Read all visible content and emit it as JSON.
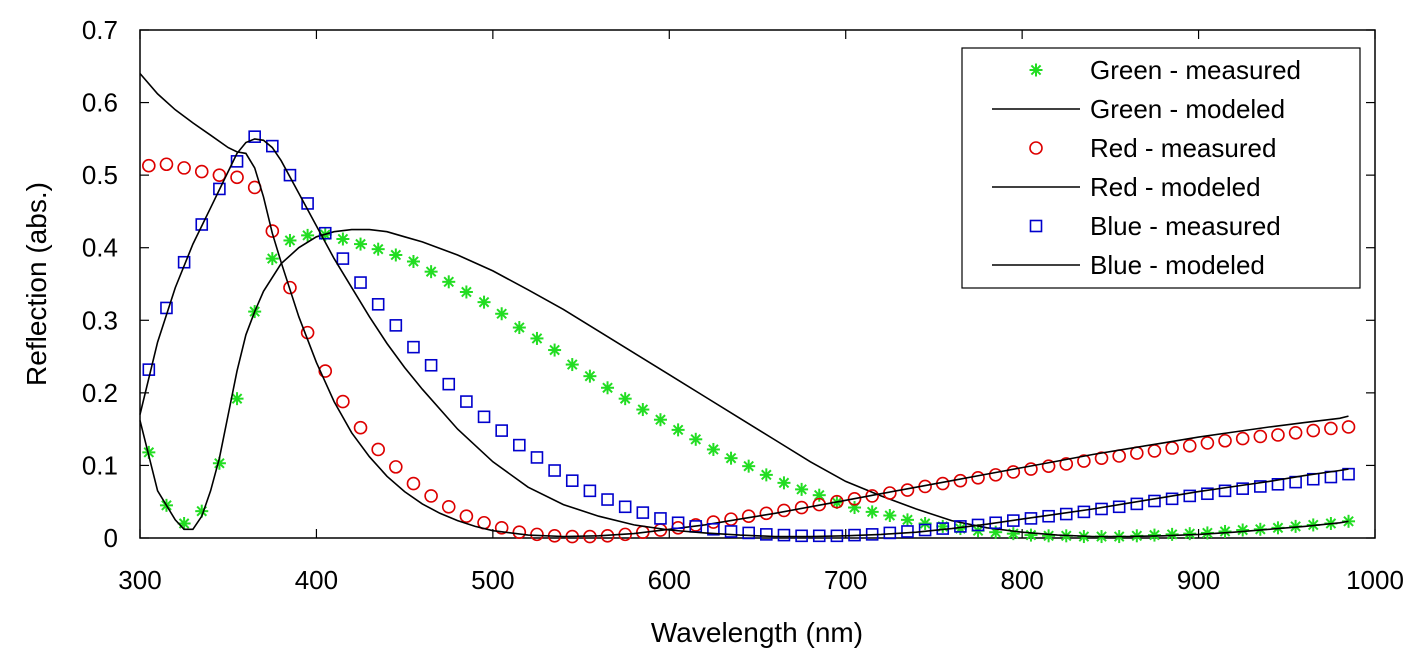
{
  "chart_data": {
    "type": "scatter",
    "xlabel": "Wavelength (nm)",
    "ylabel": "Reflection (abs.)",
    "xlim": [
      300,
      1000
    ],
    "ylim": [
      0,
      0.7
    ],
    "xticks": [
      "300",
      "400",
      "500",
      "600",
      "700",
      "800",
      "900",
      "1000"
    ],
    "yticks": [
      "0",
      "0.1",
      "0.2",
      "0.3",
      "0.4",
      "0.5",
      "0.6",
      "0.7"
    ],
    "grid": false,
    "legend_position": "top-right",
    "series": [
      {
        "name": "Green - measured",
        "kind": "markers",
        "marker": "asterisk",
        "color": "#22dd22",
        "x": [
          305,
          315,
          325,
          335,
          345,
          355,
          365,
          375,
          385,
          395,
          405,
          415,
          425,
          435,
          445,
          455,
          465,
          475,
          485,
          495,
          505,
          515,
          525,
          535,
          545,
          555,
          565,
          575,
          585,
          595,
          605,
          615,
          625,
          635,
          645,
          655,
          665,
          675,
          685,
          695,
          705,
          715,
          725,
          735,
          745,
          755,
          765,
          775,
          785,
          795,
          805,
          815,
          825,
          835,
          845,
          855,
          865,
          875,
          885,
          895,
          905,
          915,
          925,
          935,
          945,
          955,
          965,
          975,
          985
        ],
        "y": [
          0.118,
          0.045,
          0.02,
          0.037,
          0.103,
          0.192,
          0.312,
          0.385,
          0.41,
          0.417,
          0.418,
          0.412,
          0.405,
          0.398,
          0.39,
          0.381,
          0.367,
          0.353,
          0.339,
          0.325,
          0.309,
          0.29,
          0.275,
          0.259,
          0.239,
          0.223,
          0.207,
          0.192,
          0.177,
          0.163,
          0.149,
          0.136,
          0.122,
          0.11,
          0.099,
          0.087,
          0.076,
          0.067,
          0.059,
          0.049,
          0.042,
          0.036,
          0.031,
          0.025,
          0.02,
          0.016,
          0.013,
          0.01,
          0.008,
          0.006,
          0.004,
          0.003,
          0.003,
          0.002,
          0.002,
          0.002,
          0.003,
          0.004,
          0.005,
          0.006,
          0.007,
          0.009,
          0.011,
          0.012,
          0.014,
          0.016,
          0.018,
          0.02,
          0.023
        ]
      },
      {
        "name": "Green - modeled",
        "kind": "line",
        "color": "#000000",
        "x": [
          300,
          310,
          320,
          325,
          330,
          335,
          340,
          345,
          350,
          355,
          360,
          365,
          370,
          380,
          390,
          400,
          410,
          420,
          430,
          440,
          450,
          460,
          480,
          500,
          520,
          540,
          560,
          580,
          600,
          620,
          640,
          660,
          680,
          700,
          720,
          740,
          760,
          780,
          800,
          820,
          840,
          860,
          880,
          900,
          920,
          940,
          960,
          980,
          985
        ],
        "y": [
          0.162,
          0.065,
          0.025,
          0.012,
          0.012,
          0.03,
          0.065,
          0.11,
          0.17,
          0.23,
          0.28,
          0.312,
          0.34,
          0.378,
          0.4,
          0.415,
          0.422,
          0.425,
          0.425,
          0.422,
          0.415,
          0.408,
          0.39,
          0.368,
          0.342,
          0.315,
          0.285,
          0.255,
          0.225,
          0.195,
          0.165,
          0.135,
          0.105,
          0.078,
          0.058,
          0.04,
          0.024,
          0.014,
          0.008,
          0.004,
          0.002,
          0.002,
          0.003,
          0.005,
          0.008,
          0.012,
          0.016,
          0.021,
          0.023
        ]
      },
      {
        "name": "Red - measured",
        "kind": "markers",
        "marker": "circle",
        "color": "#dd0000",
        "x": [
          305,
          315,
          325,
          335,
          345,
          355,
          365,
          375,
          385,
          395,
          405,
          415,
          425,
          435,
          445,
          455,
          465,
          475,
          485,
          495,
          505,
          515,
          525,
          535,
          545,
          555,
          565,
          575,
          585,
          595,
          605,
          615,
          625,
          635,
          645,
          655,
          665,
          675,
          685,
          695,
          705,
          715,
          725,
          735,
          745,
          755,
          765,
          775,
          785,
          795,
          805,
          815,
          825,
          835,
          845,
          855,
          865,
          875,
          885,
          895,
          905,
          915,
          925,
          935,
          945,
          955,
          965,
          975,
          985
        ],
        "y": [
          0.513,
          0.515,
          0.51,
          0.505,
          0.5,
          0.497,
          0.483,
          0.423,
          0.345,
          0.283,
          0.23,
          0.188,
          0.152,
          0.122,
          0.098,
          0.075,
          0.058,
          0.043,
          0.03,
          0.021,
          0.014,
          0.008,
          0.005,
          0.003,
          0.002,
          0.002,
          0.003,
          0.005,
          0.008,
          0.011,
          0.014,
          0.018,
          0.022,
          0.026,
          0.03,
          0.034,
          0.038,
          0.042,
          0.046,
          0.05,
          0.054,
          0.058,
          0.062,
          0.066,
          0.071,
          0.075,
          0.079,
          0.083,
          0.087,
          0.091,
          0.095,
          0.099,
          0.102,
          0.106,
          0.11,
          0.113,
          0.117,
          0.12,
          0.124,
          0.127,
          0.131,
          0.134,
          0.137,
          0.14,
          0.142,
          0.145,
          0.148,
          0.151,
          0.153
        ]
      },
      {
        "name": "Red - modeled",
        "kind": "line",
        "color": "#000000",
        "x": [
          300,
          310,
          320,
          330,
          340,
          350,
          355,
          360,
          365,
          370,
          375,
          380,
          390,
          400,
          410,
          420,
          430,
          440,
          450,
          460,
          470,
          480,
          490,
          500,
          520,
          540,
          560,
          580,
          600,
          620,
          640,
          660,
          680,
          700,
          720,
          740,
          760,
          780,
          800,
          820,
          840,
          860,
          880,
          900,
          920,
          940,
          960,
          980,
          985
        ],
        "y": [
          0.64,
          0.612,
          0.59,
          0.572,
          0.555,
          0.538,
          0.532,
          0.53,
          0.51,
          0.47,
          0.42,
          0.38,
          0.305,
          0.242,
          0.188,
          0.145,
          0.112,
          0.085,
          0.064,
          0.047,
          0.034,
          0.024,
          0.016,
          0.01,
          0.004,
          0.002,
          0.003,
          0.006,
          0.012,
          0.018,
          0.026,
          0.034,
          0.043,
          0.052,
          0.061,
          0.07,
          0.079,
          0.088,
          0.097,
          0.106,
          0.115,
          0.123,
          0.131,
          0.139,
          0.146,
          0.153,
          0.159,
          0.165,
          0.168
        ]
      },
      {
        "name": "Blue - measured",
        "kind": "markers",
        "marker": "square",
        "color": "#0000cc",
        "x": [
          305,
          315,
          325,
          335,
          345,
          355,
          365,
          375,
          385,
          395,
          405,
          415,
          425,
          435,
          445,
          455,
          465,
          475,
          485,
          495,
          505,
          515,
          525,
          535,
          545,
          555,
          565,
          575,
          585,
          595,
          605,
          615,
          625,
          635,
          645,
          655,
          665,
          675,
          685,
          695,
          705,
          715,
          725,
          735,
          745,
          755,
          765,
          775,
          785,
          795,
          805,
          815,
          825,
          835,
          845,
          855,
          865,
          875,
          885,
          895,
          905,
          915,
          925,
          935,
          945,
          955,
          965,
          975,
          985
        ],
        "y": [
          0.232,
          0.317,
          0.38,
          0.432,
          0.481,
          0.519,
          0.553,
          0.54,
          0.5,
          0.461,
          0.42,
          0.385,
          0.352,
          0.322,
          0.293,
          0.263,
          0.238,
          0.212,
          0.188,
          0.167,
          0.148,
          0.128,
          0.111,
          0.093,
          0.079,
          0.065,
          0.053,
          0.043,
          0.035,
          0.027,
          0.021,
          0.016,
          0.012,
          0.009,
          0.007,
          0.005,
          0.004,
          0.003,
          0.003,
          0.003,
          0.004,
          0.005,
          0.007,
          0.009,
          0.011,
          0.013,
          0.016,
          0.018,
          0.021,
          0.024,
          0.027,
          0.03,
          0.033,
          0.036,
          0.04,
          0.043,
          0.047,
          0.051,
          0.054,
          0.058,
          0.061,
          0.065,
          0.068,
          0.071,
          0.074,
          0.077,
          0.081,
          0.084,
          0.088
        ]
      },
      {
        "name": "Blue - modeled",
        "kind": "line",
        "color": "#000000",
        "x": [
          300,
          310,
          320,
          330,
          340,
          350,
          355,
          360,
          365,
          370,
          375,
          380,
          390,
          400,
          410,
          420,
          430,
          440,
          450,
          460,
          480,
          500,
          520,
          540,
          560,
          580,
          600,
          620,
          640,
          660,
          680,
          700,
          720,
          740,
          760,
          780,
          800,
          820,
          840,
          860,
          880,
          900,
          920,
          940,
          960,
          980,
          985
        ],
        "y": [
          0.17,
          0.27,
          0.345,
          0.405,
          0.455,
          0.505,
          0.53,
          0.545,
          0.55,
          0.548,
          0.538,
          0.52,
          0.475,
          0.43,
          0.385,
          0.345,
          0.305,
          0.268,
          0.235,
          0.205,
          0.15,
          0.105,
          0.07,
          0.046,
          0.03,
          0.018,
          0.011,
          0.007,
          0.004,
          0.002,
          0.002,
          0.003,
          0.005,
          0.008,
          0.013,
          0.019,
          0.026,
          0.033,
          0.04,
          0.048,
          0.056,
          0.064,
          0.071,
          0.078,
          0.086,
          0.093,
          0.095
        ]
      }
    ]
  }
}
